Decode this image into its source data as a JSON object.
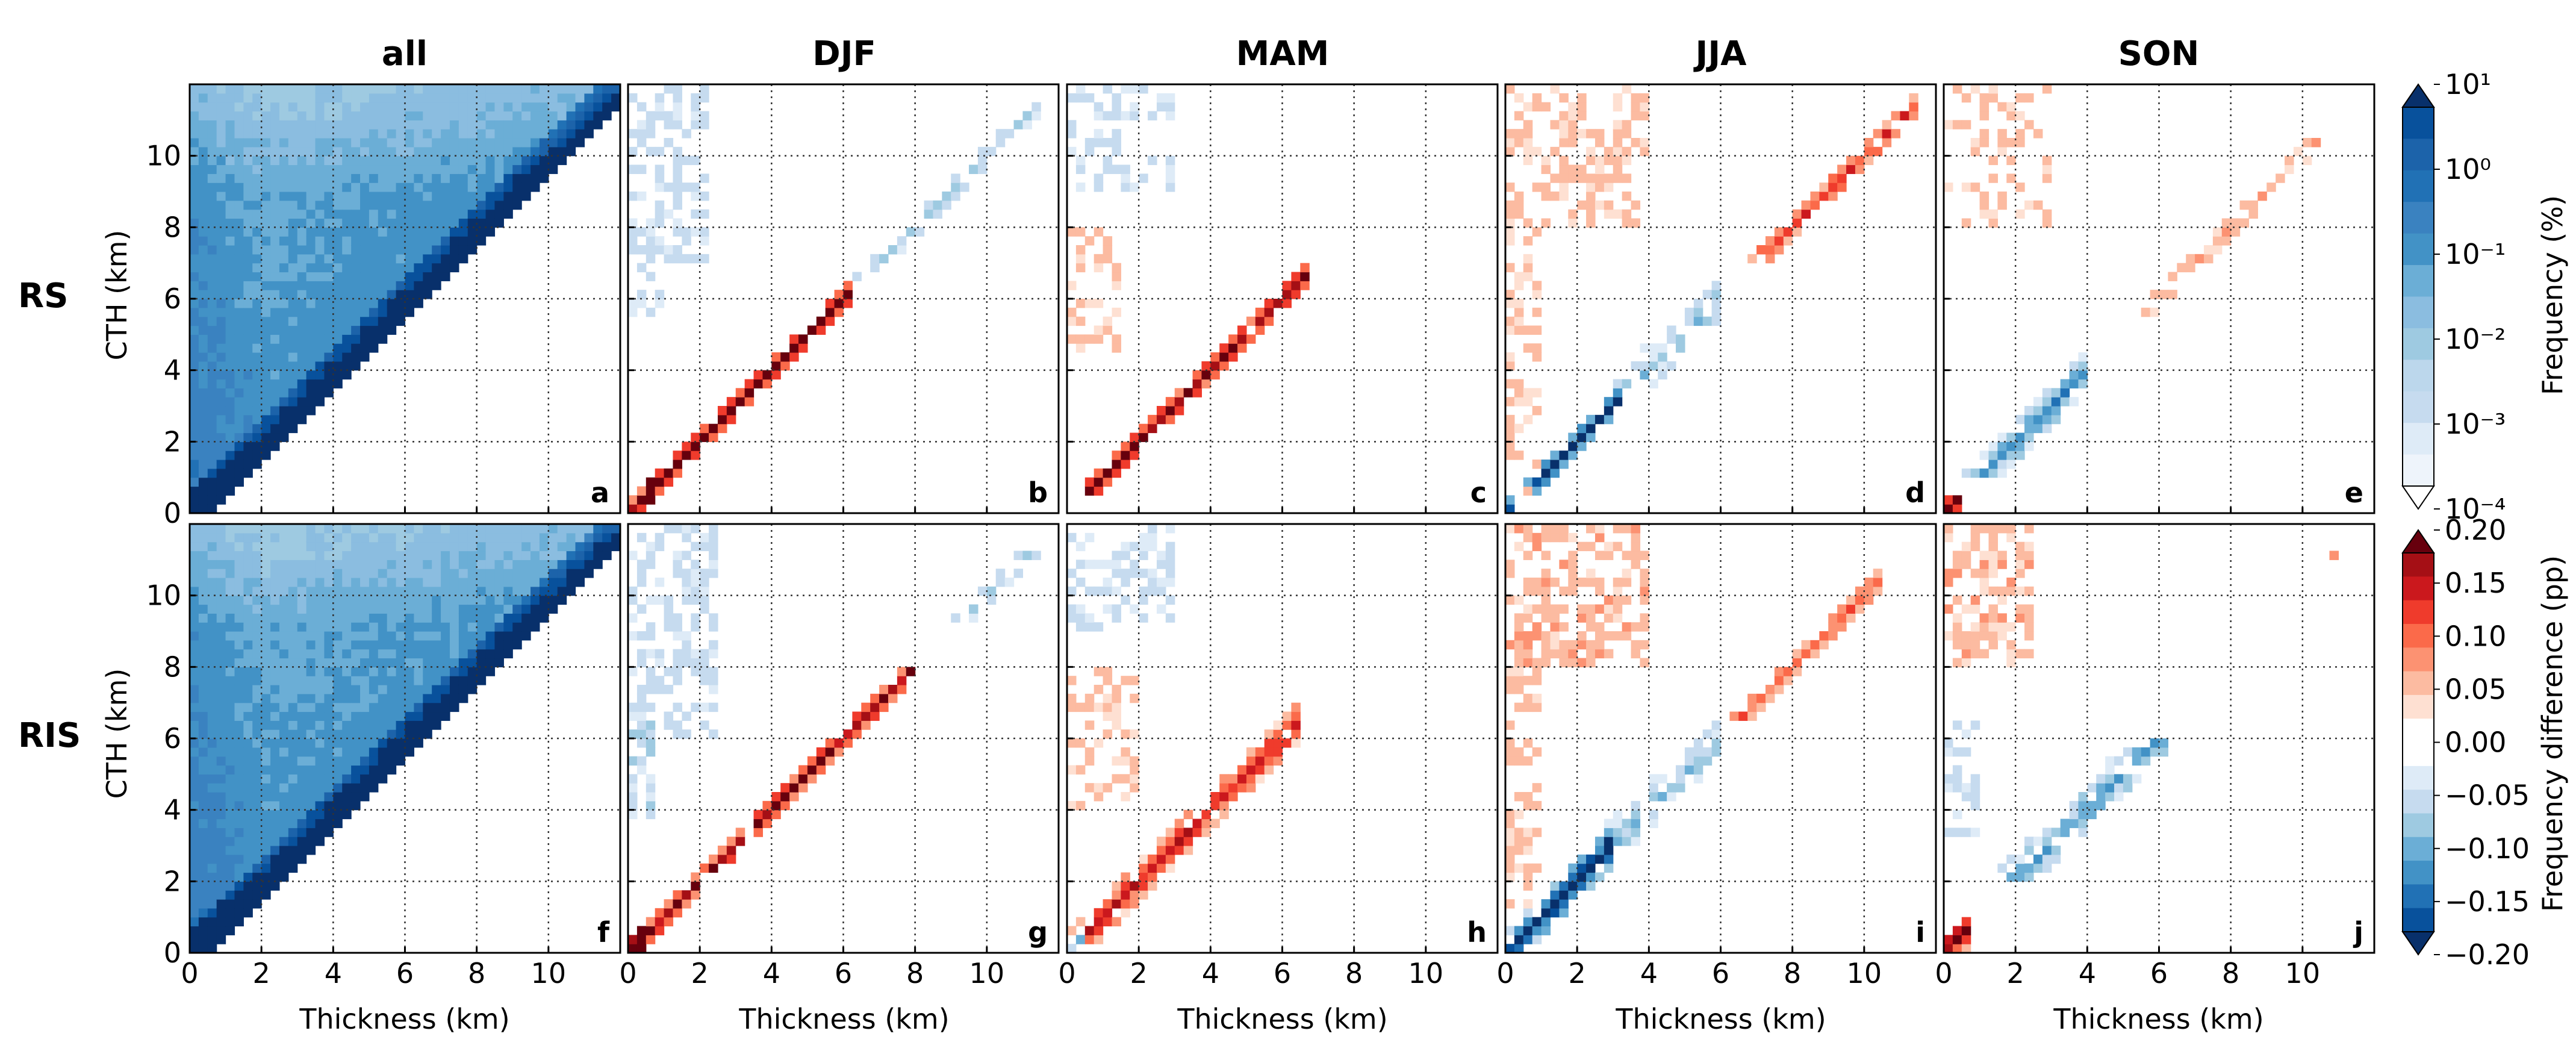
{
  "chart_data": {
    "type": "heatmap",
    "row_labels": [
      "RS",
      "RIS"
    ],
    "column_titles": [
      "all",
      "DJF",
      "MAM",
      "JJA",
      "SON"
    ],
    "panel_letters": [
      [
        "a",
        "b",
        "c",
        "d",
        "e"
      ],
      [
        "f",
        "g",
        "h",
        "i",
        "j"
      ]
    ],
    "xlabel": "Thickness (km)",
    "ylabel": "CTH (km)",
    "xlim": [
      0,
      12
    ],
    "ylim": [
      0,
      12
    ],
    "xticks": [
      0,
      2,
      4,
      6,
      8,
      10
    ],
    "yticks": [
      0,
      2,
      4,
      6,
      8,
      10
    ],
    "grid": true,
    "frequency_colorbar": {
      "label": "Frequency (%)",
      "scale": "log",
      "tick_labels": [
        "10¹",
        "10⁰",
        "10⁻¹",
        "10⁻²",
        "10⁻³",
        "10⁻⁴"
      ],
      "colors": [
        "#08306b",
        "#08519c",
        "#1c63aa",
        "#2171b5",
        "#3a82c0",
        "#4292c6",
        "#6baed6",
        "#8bbde0",
        "#9ecae1",
        "#bcd7ec",
        "#c6dbef",
        "#deebf7",
        "#eef4fb",
        "#ffffff"
      ]
    },
    "difference_colorbar": {
      "label": "Frequency difference (pp)",
      "tick_labels": [
        "0.20",
        "0.15",
        "0.10",
        "0.05",
        "0.00",
        "−0.05",
        "−0.10",
        "−0.15",
        "−0.20"
      ],
      "colors": [
        "#67000d",
        "#a50f15",
        "#cb181d",
        "#ef3b2c",
        "#fb6a4a",
        "#fc9272",
        "#fcbba1",
        "#fee0d2",
        "#ffffff",
        "#ffffff",
        "#deebf7",
        "#c6dbef",
        "#9ecae1",
        "#6baed6",
        "#4292c6",
        "#2171b5",
        "#08519c",
        "#08306b"
      ]
    },
    "panels": [
      {
        "id": "a",
        "row": 0,
        "col": 0,
        "kind": "freq",
        "seed": 11,
        "bands": [
          {
            "x0": 0,
            "x1": 12,
            "y0": 0,
            "y1": 12,
            "w": 0.55,
            "amp": 0.9
          },
          {
            "x0": 0,
            "x1": 2,
            "y0": 0,
            "y1": 12,
            "w": 1,
            "amp": 0.4
          }
        ]
      },
      {
        "id": "b",
        "row": 0,
        "col": 1,
        "kind": "diff",
        "seed": 21,
        "bands": [
          {
            "x0": 0,
            "x1": 6.2,
            "y0": 0,
            "y1": 6.5,
            "w": 0.5,
            "amp": 1.0
          },
          {
            "x0": 0.1,
            "x1": 0.7,
            "y0": 0,
            "y1": 3.5,
            "w": 0.5,
            "amp": 0.9
          },
          {
            "x0": 0,
            "x1": 2.2,
            "y0": 7,
            "y1": 12,
            "w": 1,
            "amp": -0.35
          },
          {
            "x0": 0,
            "x1": 0.9,
            "y0": 5.5,
            "y1": 7,
            "w": 1,
            "amp": -0.3
          },
          {
            "x0": 6,
            "x1": 11.5,
            "y0": 6.5,
            "y1": 12,
            "w": 0.45,
            "amp": -0.25
          },
          {
            "x0": 0,
            "x1": 0.6,
            "y0": 0,
            "y1": 1.2,
            "w": 0.5,
            "amp": -1.0
          }
        ]
      },
      {
        "id": "c",
        "row": 0,
        "col": 2,
        "kind": "diff",
        "seed": 31,
        "bands": [
          {
            "x0": 0,
            "x1": 6.8,
            "y0": 0,
            "y1": 7.8,
            "w": 0.5,
            "amp": 0.9
          },
          {
            "x0": 0,
            "x1": 1.5,
            "y0": 4.5,
            "y1": 8,
            "w": 1,
            "amp": 0.25
          },
          {
            "x0": 0,
            "x1": 3,
            "y0": 9,
            "y1": 12,
            "w": 1,
            "amp": -0.25
          },
          {
            "x0": 0.1,
            "x1": 0.6,
            "y0": 0,
            "y1": 1.2,
            "w": 0.5,
            "amp": -1.0
          }
        ]
      },
      {
        "id": "d",
        "row": 0,
        "col": 3,
        "kind": "diff",
        "seed": 41,
        "bands": [
          {
            "x0": 0,
            "x1": 3.2,
            "y0": 0,
            "y1": 3.8,
            "w": 0.5,
            "amp": -1.0
          },
          {
            "x0": 0,
            "x1": 4,
            "y0": 8,
            "y1": 12,
            "w": 1,
            "amp": 0.35
          },
          {
            "x0": 6,
            "x1": 11.5,
            "y0": 7,
            "y1": 12,
            "w": 0.5,
            "amp": 0.55
          },
          {
            "x0": 0,
            "x1": 0.9,
            "y0": 0,
            "y1": 8,
            "w": 1,
            "amp": 0.3
          },
          {
            "x0": 3,
            "x1": 6,
            "y0": 3.5,
            "y1": 7,
            "w": 0.8,
            "amp": -0.3
          },
          {
            "x0": 0.3,
            "x1": 0.7,
            "y0": 0,
            "y1": 0.8,
            "w": 0.5,
            "amp": 1.0
          }
        ]
      },
      {
        "id": "e",
        "row": 0,
        "col": 4,
        "kind": "diff",
        "seed": 51,
        "bands": [
          {
            "x0": 0,
            "x1": 4,
            "y0": 1,
            "y1": 5,
            "w": 0.7,
            "amp": -0.55
          },
          {
            "x0": 0.1,
            "x1": 0.6,
            "y0": 0,
            "y1": 1.6,
            "w": 0.5,
            "amp": 1.0
          },
          {
            "x0": 0,
            "x1": 3,
            "y0": 8,
            "y1": 12,
            "w": 1,
            "amp": 0.2
          },
          {
            "x0": 5,
            "x1": 10.5,
            "y0": 5.5,
            "y1": 11,
            "w": 0.5,
            "amp": 0.2
          }
        ]
      },
      {
        "id": "f",
        "row": 1,
        "col": 0,
        "kind": "freq",
        "seed": 61,
        "bands": [
          {
            "x0": 0,
            "x1": 12,
            "y0": 0,
            "y1": 12,
            "w": 0.55,
            "amp": 0.9
          },
          {
            "x0": 0,
            "x1": 2,
            "y0": 0,
            "y1": 12,
            "w": 1,
            "amp": 0.5
          }
        ]
      },
      {
        "id": "g",
        "row": 1,
        "col": 1,
        "kind": "diff",
        "seed": 71,
        "bands": [
          {
            "x0": 0,
            "x1": 8,
            "y0": 0,
            "y1": 8.5,
            "w": 0.5,
            "amp": 0.85
          },
          {
            "x0": 0,
            "x1": 2.5,
            "y0": 6,
            "y1": 12,
            "w": 1,
            "amp": -0.35
          },
          {
            "x0": 0,
            "x1": 0.8,
            "y0": 3.8,
            "y1": 6.5,
            "w": 1,
            "amp": -0.4
          },
          {
            "x0": 0.1,
            "x1": 0.5,
            "y0": 0,
            "y1": 3.5,
            "w": 0.5,
            "amp": 0.9
          },
          {
            "x0": 9,
            "x1": 11.5,
            "y0": 9,
            "y1": 12,
            "w": 0.5,
            "amp": -0.2
          }
        ]
      },
      {
        "id": "h",
        "row": 1,
        "col": 2,
        "kind": "diff",
        "seed": 81,
        "bands": [
          {
            "x0": 0,
            "x1": 6.5,
            "y0": 0,
            "y1": 7,
            "w": 0.7,
            "amp": 0.7
          },
          {
            "x0": 0,
            "x1": 2,
            "y0": 4,
            "y1": 8,
            "w": 1,
            "amp": 0.25
          },
          {
            "x0": 0,
            "x1": 3,
            "y0": 9,
            "y1": 12,
            "w": 1,
            "amp": -0.25
          },
          {
            "x0": 0.1,
            "x1": 0.6,
            "y0": 0,
            "y1": 0.8,
            "w": 0.5,
            "amp": -1.0
          }
        ]
      },
      {
        "id": "i",
        "row": 1,
        "col": 3,
        "kind": "diff",
        "seed": 91,
        "bands": [
          {
            "x0": 0,
            "x1": 3,
            "y0": 0,
            "y1": 4,
            "w": 0.8,
            "amp": -1.0
          },
          {
            "x0": 0,
            "x1": 4,
            "y0": 8,
            "y1": 12,
            "w": 1,
            "amp": 0.45
          },
          {
            "x0": 0,
            "x1": 0.9,
            "y0": 0,
            "y1": 9,
            "w": 1,
            "amp": 0.35
          },
          {
            "x0": 6,
            "x1": 10.5,
            "y0": 6.5,
            "y1": 11.5,
            "w": 0.5,
            "amp": 0.45
          },
          {
            "x0": 2.5,
            "x1": 6,
            "y0": 3,
            "y1": 7,
            "w": 0.8,
            "amp": -0.3
          }
        ]
      },
      {
        "id": "j",
        "row": 1,
        "col": 4,
        "kind": "diff",
        "seed": 101,
        "bands": [
          {
            "x0": 0,
            "x1": 2.5,
            "y0": 8,
            "y1": 12,
            "w": 1,
            "amp": 0.45
          },
          {
            "x0": 0,
            "x1": 0.7,
            "y0": 0,
            "y1": 2.5,
            "w": 0.6,
            "amp": 0.9
          },
          {
            "x0": 1.5,
            "x1": 7,
            "y0": 2,
            "y1": 6,
            "w": 0.8,
            "amp": -0.5
          },
          {
            "x0": 0,
            "x1": 1,
            "y0": 3,
            "y1": 6.5,
            "w": 1,
            "amp": -0.3
          },
          {
            "x0": 10.5,
            "x1": 11,
            "y0": 11,
            "y1": 11.5,
            "w": 0.5,
            "amp": 0.5
          }
        ]
      }
    ]
  }
}
